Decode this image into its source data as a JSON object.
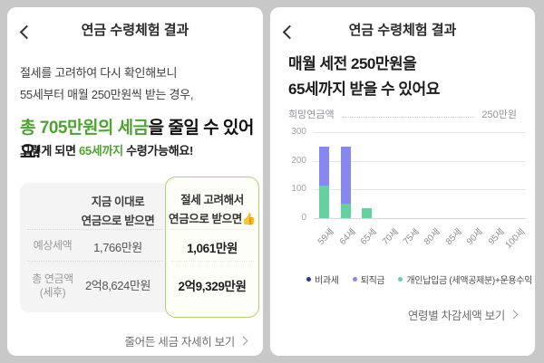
{
  "left_screen": {
    "header": {
      "title": "연금 수령체험 결과"
    },
    "intro_line1": "절세를 고려하여 다시 확인해보니",
    "intro_line2": "55세부터 매월 250만원씩 받는 경우,",
    "highlight": {
      "green": "총 705만원의 세금",
      "rest": "을 줄일 수 있어요!"
    },
    "subline": {
      "pre": "그렇게 되면 ",
      "green": "65세까지",
      "post": " 수령가능해요!"
    },
    "table": {
      "current_header_line1": "지금 이대로",
      "current_header_line2": "연금으로 받으면",
      "optimized_header_line1": "절세 고려해서",
      "optimized_header_line2": "연금으로 받으면👍",
      "rows": [
        {
          "label_line1": "예상세액",
          "label_line2": "",
          "current": "1,766만원",
          "optimized": "1,061만원"
        },
        {
          "label_line1": "총 연금액",
          "label_line2": "(세후)",
          "current": "2억8,624만원",
          "optimized": "2억9,329만원"
        }
      ]
    },
    "detail_link": "줄어든 세금 자세히 보기"
  },
  "right_screen": {
    "header": {
      "title": "연금 수령체험 결과"
    },
    "headline_line1": "매월 세전 250만원을",
    "headline_line2": "65세까지 받을 수 있어요",
    "detail_link": "연령별 차감세액 보기"
  },
  "chart_data": {
    "type": "bar",
    "stacked": true,
    "categories": [
      "59세",
      "64세",
      "65세",
      "70세",
      "75세",
      "80세",
      "85세",
      "90세",
      "95세",
      "100세"
    ],
    "series": [
      {
        "name": "비과세",
        "color": "#1d3d8c",
        "values": [
          0,
          0,
          0,
          0,
          0,
          0,
          0,
          0,
          0,
          0
        ]
      },
      {
        "name": "퇴직금",
        "color": "#8787f2",
        "values": [
          135,
          200,
          0,
          0,
          0,
          0,
          0,
          0,
          0,
          0
        ]
      },
      {
        "name": "개인납입금 (세액공제분)+운용수익",
        "color": "#66d09e",
        "values": [
          115,
          50,
          35,
          0,
          0,
          0,
          0,
          0,
          0,
          0
        ]
      }
    ],
    "yticks": [
      0,
      100,
      200,
      300
    ],
    "ylim": [
      0,
      300
    ],
    "grid": "horizontal",
    "legend_position": "bottom",
    "header_row": {
      "label": "희망연금액",
      "value": "250만원"
    }
  },
  "colors": {
    "accent_green": "#4da32f",
    "green_box_border": "#a8d56f",
    "bar_purple": "#8787f2",
    "bar_green": "#66d09e",
    "legend_navy": "#1d3d8c",
    "frame_gray": "#c8c8c8"
  }
}
